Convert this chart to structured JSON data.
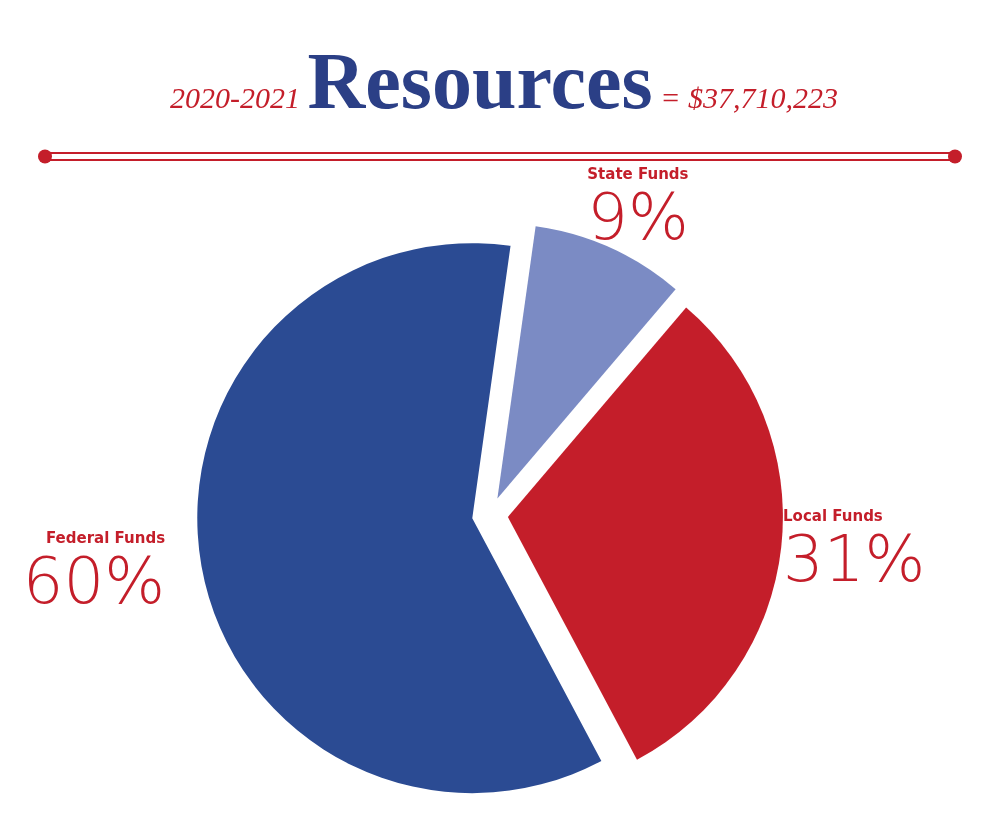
{
  "chart_data": {
    "type": "pie",
    "title": "Resources",
    "subtitle": "2020-2021",
    "annotations": [
      "= $37,710,223"
    ],
    "categories": [
      "State Funds",
      "Local Funds",
      "Federal Funds"
    ],
    "values": [
      9,
      31,
      60
    ],
    "value_labels": [
      "9%",
      "31%",
      "60%"
    ],
    "colors": [
      "#7b8bc4",
      "#c41e2a",
      "#2b4b93"
    ]
  }
}
